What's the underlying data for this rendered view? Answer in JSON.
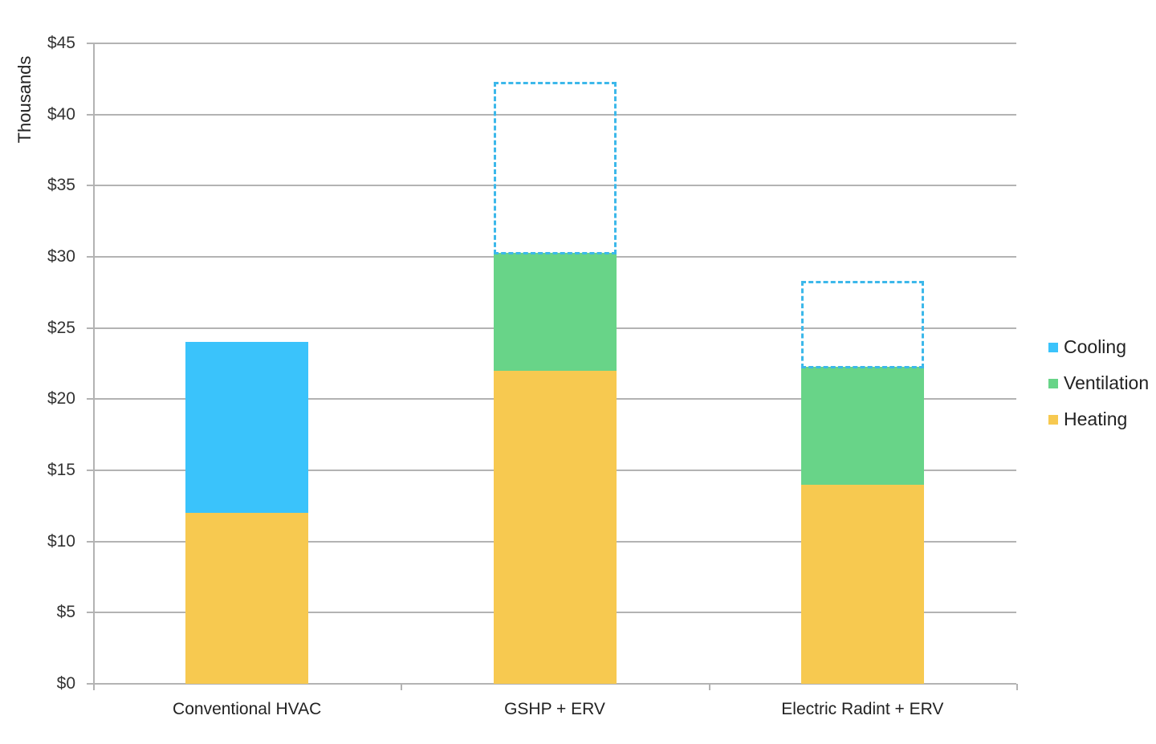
{
  "chart_data": {
    "type": "bar",
    "stacked": true,
    "title": "",
    "xlabel": "",
    "ylabel": "Thousands",
    "ylim": [
      0,
      45
    ],
    "yticks": [
      "$0",
      "$5",
      "$10",
      "$15",
      "$20",
      "$25",
      "$30",
      "$35",
      "$40",
      "$45"
    ],
    "grid": true,
    "legend_position": "right",
    "categories": [
      "Conventional HVAC",
      "GSHP + ERV",
      "Electric Radint + ERV"
    ],
    "series": [
      {
        "name": "Heating",
        "color": "#f7c950",
        "values": [
          12.0,
          22.0,
          14.0
        ]
      },
      {
        "name": "Ventilation",
        "color": "#68d488",
        "values": [
          0,
          8.3,
          8.3
        ]
      },
      {
        "name": "Cooling",
        "color": "#3ac3fb",
        "values": [
          12.0,
          12.0,
          6.0
        ],
        "style": [
          "solid",
          "dashed-outline",
          "dashed-outline"
        ]
      }
    ],
    "stack_totals": [
      24.0,
      42.3,
      28.3
    ]
  },
  "legend": {
    "items": [
      {
        "label": "Cooling",
        "color": "#3ac3fb"
      },
      {
        "label": "Ventilation",
        "color": "#68d488"
      },
      {
        "label": "Heating",
        "color": "#f7c950"
      }
    ]
  }
}
